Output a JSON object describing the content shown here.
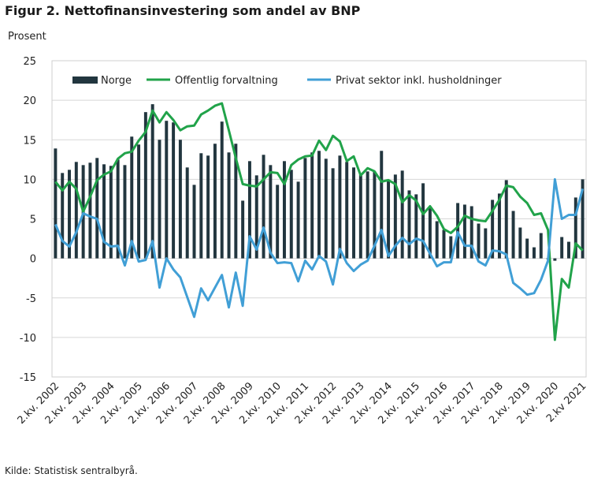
{
  "title": "Figur 2. Nettofinansinvestering som andel av BNP",
  "y_unit": "Prosent",
  "source": "Kilde: Statistisk sentralbyrå.",
  "colors": {
    "norge": "#22363f",
    "offentlig": "#21a34a",
    "privat": "#419fd6",
    "grid": "#d7d7d7"
  },
  "chart_data": {
    "type": "bar+line",
    "title": "Figur 2. Nettofinansinvestering som andel av BNP",
    "ylabel": "Prosent",
    "ylim": [
      -15,
      25
    ],
    "yticks": [
      25,
      20,
      15,
      10,
      5,
      0,
      -5,
      -10,
      -15
    ],
    "grid": true,
    "legend": "top",
    "x_labels": [
      "2.kv. 2002",
      "2.kv. 2003",
      "2.kv. 2004",
      "2.kv. 2005",
      "2.kv. 2006",
      "2.kv. 2007",
      "2.kv. 2008",
      "2.kv. 2009",
      "2.kv. 2010",
      "2.kv. 2011",
      "2.kv. 2012",
      "2.kv. 2013",
      "2.kv. 2014",
      "2.kv. 2015",
      "2.kv. 2016",
      "2.kv. 2017",
      "2.kv. 2018",
      "2.kv. 2019",
      "2.kv. 2020",
      "2.kv 2021"
    ],
    "series": [
      {
        "name": "Norge",
        "kind": "bar",
        "values": [
          13.9,
          10.8,
          11.2,
          12.2,
          11.8,
          12.1,
          12.7,
          11.9,
          11.7,
          12.5,
          11.8,
          15.4,
          14.4,
          18.5,
          19.5,
          15.0,
          17.4,
          17.2,
          15.0,
          11.5,
          9.3,
          13.3,
          13.0,
          14.5,
          17.3,
          13.4,
          14.5,
          7.3,
          12.3,
          10.5,
          13.1,
          11.8,
          9.3,
          12.3,
          11.2,
          9.7,
          12.7,
          13.4,
          13.6,
          12.6,
          11.4,
          13.0,
          12.2,
          11.5,
          10.6,
          11.0,
          11.0,
          13.6,
          9.9,
          10.6,
          11.1,
          8.6,
          8.1,
          9.5,
          6.5,
          4.7,
          3.6,
          2.8,
          7.0,
          6.8,
          6.6,
          4.4,
          3.8,
          7.4,
          8.2,
          9.9,
          6.0,
          3.9,
          2.5,
          1.4,
          3.2,
          -0.1,
          -0.3,
          2.7,
          2.1,
          7.7,
          10.0
        ]
      },
      {
        "name": "Offentlig forvaltning",
        "kind": "line",
        "values": [
          9.7,
          8.6,
          9.7,
          8.8,
          5.9,
          7.8,
          9.9,
          10.6,
          11.0,
          12.6,
          13.3,
          13.5,
          14.9,
          16.0,
          18.7,
          17.2,
          18.5,
          17.5,
          16.2,
          16.7,
          16.8,
          18.2,
          18.7,
          19.3,
          19.6,
          16.2,
          12.7,
          9.4,
          9.2,
          9.1,
          10.0,
          10.9,
          10.8,
          9.4,
          11.8,
          12.5,
          12.9,
          13.0,
          14.9,
          13.7,
          15.5,
          14.8,
          12.3,
          12.9,
          10.5,
          11.4,
          11.0,
          9.7,
          9.9,
          9.4,
          7.1,
          8.0,
          7.3,
          5.6,
          6.6,
          5.4,
          3.7,
          3.2,
          4.0,
          5.4,
          5.0,
          4.8,
          4.7,
          6.0,
          7.4,
          9.2,
          9.0,
          7.8,
          7.0,
          5.5,
          5.7,
          3.6,
          -10.3,
          -2.6,
          -3.7,
          1.9,
          1.0
        ]
      },
      {
        "name": "Privat sektor inkl. husholdninger",
        "kind": "line",
        "values": [
          4.3,
          2.2,
          1.5,
          3.3,
          5.7,
          5.3,
          5.0,
          2.1,
          1.5,
          1.6,
          -0.9,
          2.2,
          -0.4,
          -0.2,
          2.2,
          -3.7,
          0.0,
          -1.4,
          -2.4,
          -4.9,
          -7.4,
          -3.8,
          -5.3,
          -3.7,
          -2.1,
          -6.2,
          -1.8,
          -6.0,
          2.8,
          1.1,
          3.9,
          0.7,
          -0.6,
          -0.5,
          -0.6,
          -2.9,
          -0.3,
          -1.4,
          0.3,
          -0.4,
          -3.3,
          1.2,
          -0.6,
          -1.6,
          -0.8,
          -0.3,
          1.6,
          3.6,
          0.3,
          1.6,
          2.6,
          1.8,
          2.5,
          2.2,
          0.6,
          -1.0,
          -0.5,
          -0.5,
          3.3,
          1.6,
          1.6,
          -0.4,
          -0.9,
          1.0,
          0.9,
          0.5,
          -3.1,
          -3.8,
          -4.6,
          -4.4,
          -2.7,
          -0.3,
          10.0,
          5.0,
          5.5,
          5.5,
          8.8
        ]
      }
    ]
  }
}
